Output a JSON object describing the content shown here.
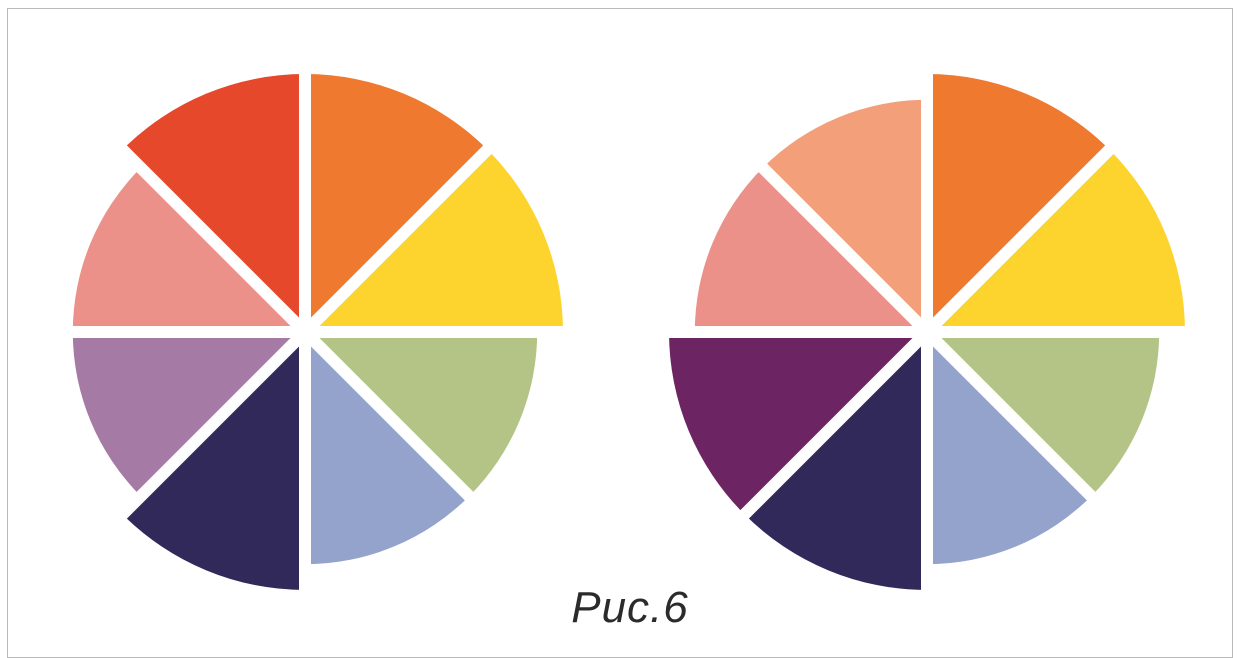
{
  "figure": {
    "caption": "Рис.6"
  },
  "colors": {
    "background": "#ffffff",
    "frame_border": "#b9b9b9",
    "separator": "#ffffff",
    "red": "#e5482a",
    "orange": "#ef792e",
    "yellow": "#fdd32d",
    "green": "#b3c486",
    "light_blue": "#94a3cb",
    "navy": "#30295a",
    "lavender": "#a57aa5",
    "pink": "#eb918a",
    "peach": "#f39f79",
    "plum": "#6c2562"
  },
  "wheels": [
    {
      "name": "wheel-left",
      "sectors": [
        {
          "name": "orange",
          "color": "#ef792e",
          "radius_level": 1.0
        },
        {
          "name": "yellow",
          "color": "#fdd32d",
          "radius_level": 1.0
        },
        {
          "name": "green",
          "color": "#b3c486",
          "radius_level": 0.9
        },
        {
          "name": "light-blue",
          "color": "#94a3cb",
          "radius_level": 0.9
        },
        {
          "name": "navy",
          "color": "#30295a",
          "radius_level": 1.0
        },
        {
          "name": "lavender",
          "color": "#a57aa5",
          "radius_level": 0.9
        },
        {
          "name": "pink",
          "color": "#eb918a",
          "radius_level": 0.9
        },
        {
          "name": "red",
          "color": "#e5482a",
          "radius_level": 1.0
        }
      ]
    },
    {
      "name": "wheel-right",
      "sectors": [
        {
          "name": "orange",
          "color": "#ef792e",
          "radius_level": 1.0
        },
        {
          "name": "yellow",
          "color": "#fdd32d",
          "radius_level": 1.0
        },
        {
          "name": "green",
          "color": "#b3c486",
          "radius_level": 0.9
        },
        {
          "name": "light-blue",
          "color": "#94a3cb",
          "radius_level": 0.9
        },
        {
          "name": "navy",
          "color": "#30295a",
          "radius_level": 1.0
        },
        {
          "name": "plum",
          "color": "#6c2562",
          "radius_level": 1.0
        },
        {
          "name": "pink",
          "color": "#eb918a",
          "radius_level": 0.9
        },
        {
          "name": "peach",
          "color": "#f39f79",
          "radius_level": 0.9
        }
      ]
    }
  ]
}
